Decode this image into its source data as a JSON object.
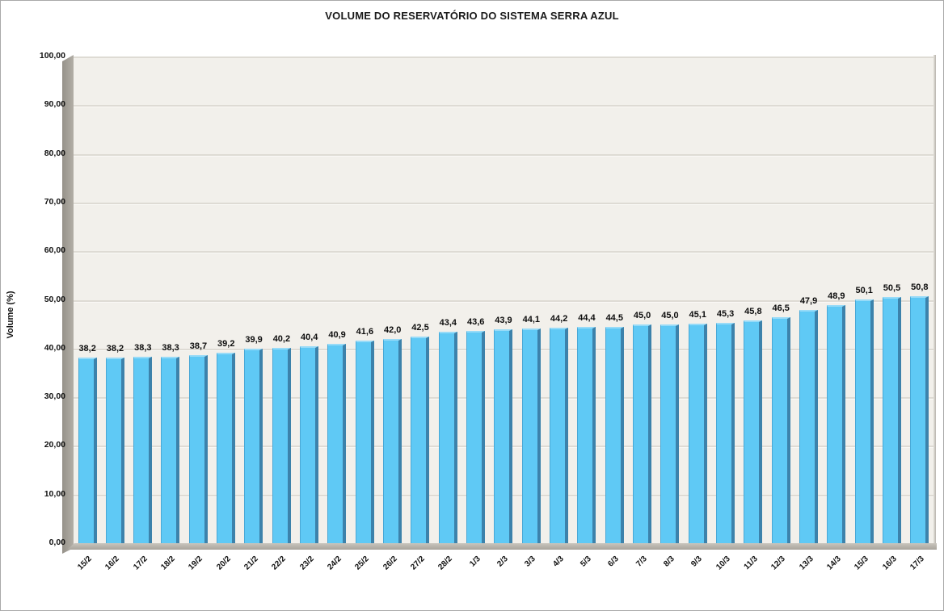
{
  "window": {
    "background": "#ffffff",
    "border_color": "#a9a9a9"
  },
  "chart_data": {
    "type": "bar",
    "style": "excel-3d-column",
    "title": "VOLUME DO RESERVATÓRIO DO SISTEMA SERRA AZUL",
    "xlabel": "",
    "ylabel": "Volume (%)",
    "ylim": [
      0,
      100
    ],
    "ytick_step": 10,
    "ytick_labels_top_to_bottom": [
      "100,00",
      "90,00",
      "80,00",
      "70,00",
      "60,00",
      "50,00",
      "40,00",
      "30,00",
      "20,00",
      "10,00",
      "0,00"
    ],
    "grid": true,
    "legend": false,
    "categories": [
      "15/2",
      "16/2",
      "17/2",
      "18/2",
      "19/2",
      "20/2",
      "21/2",
      "22/2",
      "23/2",
      "24/2",
      "25/2",
      "26/2",
      "27/2",
      "28/2",
      "1/3",
      "2/3",
      "3/3",
      "4/3",
      "5/3",
      "6/3",
      "7/3",
      "8/3",
      "9/3",
      "10/3",
      "11/3",
      "12/3",
      "13/3",
      "14/3",
      "15/3",
      "16/3",
      "17/3"
    ],
    "values": [
      38.2,
      38.2,
      38.3,
      38.3,
      38.7,
      39.2,
      39.9,
      40.2,
      40.4,
      40.9,
      41.6,
      42.0,
      42.5,
      43.4,
      43.6,
      43.9,
      44.1,
      44.2,
      44.4,
      44.5,
      45.0,
      45.0,
      45.1,
      45.3,
      45.8,
      46.5,
      47.9,
      48.9,
      50.1,
      50.5,
      50.8
    ],
    "value_labels": [
      "38,2",
      "38,2",
      "38,3",
      "38,3",
      "38,7",
      "39,2",
      "39,9",
      "40,2",
      "40,4",
      "40,9",
      "41,6",
      "42,0",
      "42,5",
      "43,4",
      "43,6",
      "43,9",
      "44,1",
      "44,2",
      "44,4",
      "44,5",
      "45,0",
      "45,0",
      "45,1",
      "45,3",
      "45,8",
      "46,5",
      "47,9",
      "48,9",
      "50,1",
      "50,5",
      "50,8"
    ],
    "colors": {
      "bar_front": "#5fc9f5",
      "bar_side": "#3c82ab",
      "bar_top_bevel": "#97dbf8",
      "wall_background": "#f2f0eb",
      "wall_side": "#a5a19a",
      "floor": "#b7b3ab",
      "gridline": "#dedbd4",
      "text": "#111111"
    }
  }
}
